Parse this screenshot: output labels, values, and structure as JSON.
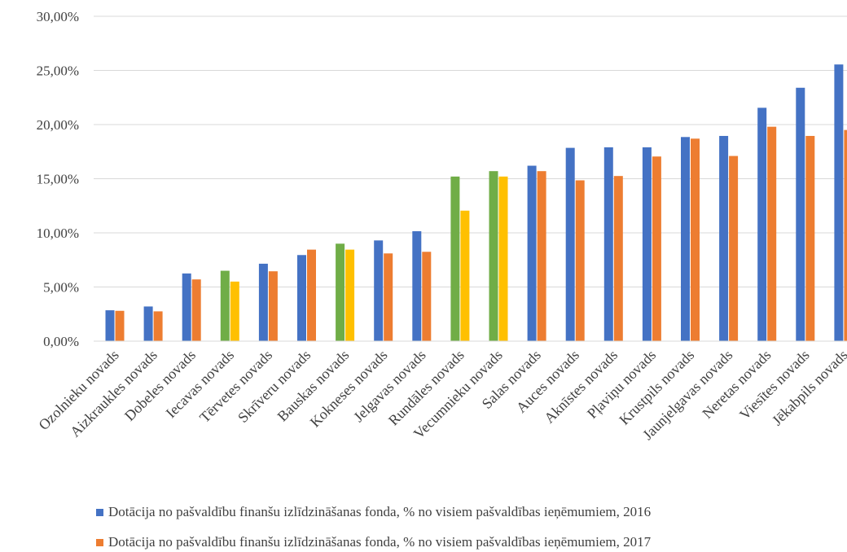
{
  "chart_data": {
    "type": "bar",
    "title": "",
    "xlabel": "",
    "ylabel": "",
    "ylim": [
      0,
      30
    ],
    "y_ticks": [
      "0,00%",
      "5,00%",
      "10,00%",
      "15,00%",
      "20,00%",
      "25,00%",
      "30,00%"
    ],
    "grid": true,
    "legend_position": "bottom",
    "categories": [
      "Ozolnieku novads",
      "Aizkraukles novads",
      "Dobeles novads",
      "Iecavas novads",
      "Tērvetes novads",
      "Skrīveru novads",
      "Bauskas novads",
      "Kokneses novads",
      "Jelgavas novads",
      "Rundāles novads",
      "Vecumnieku novads",
      "Salas novads",
      "Auces novads",
      "Aknīstes novads",
      "Pļaviņu novads",
      "Krustpils novads",
      "Jaunjelgavas novads",
      "Neretas novads",
      "Viesītes novads",
      "Jēkabpils novads"
    ],
    "series": [
      {
        "name": "Dotācija no pašvaldību finanšu izlīdzināšanas fonda, % no visiem pašvaldības ieņēmumiem, 2016",
        "color": "#4472C4",
        "values": [
          2.85,
          3.2,
          6.25,
          6.5,
          7.15,
          7.95,
          9.0,
          9.3,
          10.15,
          15.2,
          15.7,
          16.2,
          17.85,
          17.9,
          17.9,
          18.85,
          18.95,
          21.55,
          23.4,
          25.55
        ]
      },
      {
        "name": "Dotācija no pašvaldību finanšu izlīdzināšanas fonda, % no visiem pašvaldības ieņēmumiem, 2017",
        "color": "#ED7D31",
        "values": [
          2.8,
          2.75,
          5.7,
          5.5,
          6.45,
          8.45,
          8.45,
          8.1,
          8.25,
          12.05,
          15.2,
          15.7,
          14.85,
          15.25,
          17.05,
          18.7,
          17.1,
          19.8,
          18.95,
          19.5
        ]
      }
    ],
    "highlight": {
      "categories": [
        "Iecavas novads",
        "Bauskas novads",
        "Rundāles novads",
        "Vecumnieku novads"
      ],
      "colors_2016": "#70AD47",
      "colors_2017": "#FFC000"
    }
  },
  "legend": {
    "items": [
      {
        "label": "Dotācija no pašvaldību finanšu izlīdzināšanas fonda, % no visiem pašvaldības ieņēmumiem, 2016",
        "color": "#4472C4"
      },
      {
        "label": "Dotācija no pašvaldību finanšu izlīdzināšanas fonda, % no visiem pašvaldības ieņēmumiem, 2017",
        "color": "#ED7D31"
      }
    ]
  }
}
